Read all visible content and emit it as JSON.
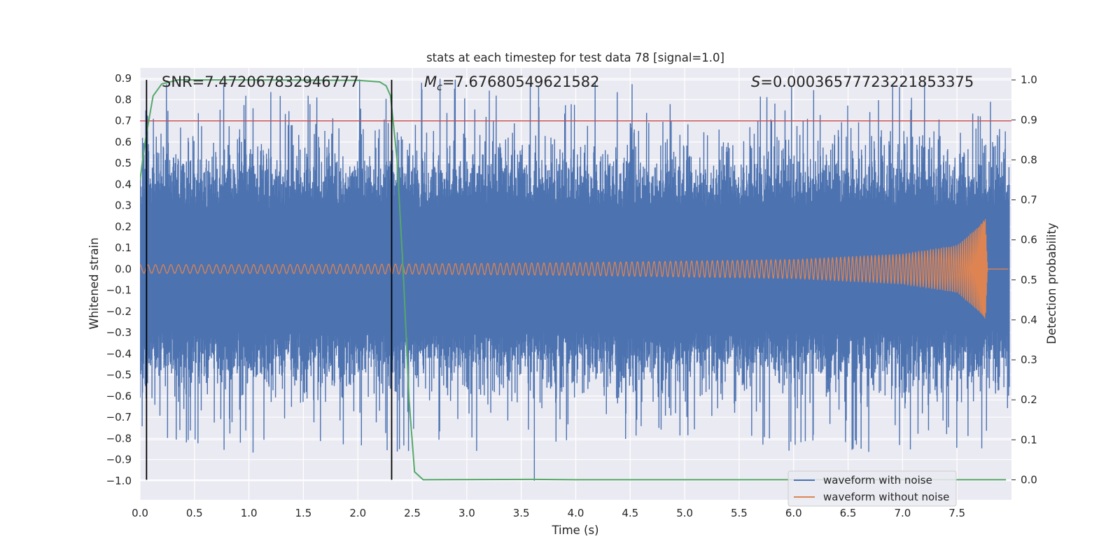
{
  "chart_data": {
    "type": "line",
    "title": "stats at each timestep for test data 78 [signal=1.0]",
    "xlabel": "Time (s)",
    "ylabel_left": "Whitened strain",
    "ylabel_right": "Detection probability",
    "xlim": [
      0.0,
      8.0
    ],
    "ylim_left": [
      -1.09,
      0.95
    ],
    "ylim_right": [
      -0.05,
      1.03
    ],
    "x_ticks": [
      0.0,
      0.5,
      1.0,
      1.5,
      2.0,
      2.5,
      3.0,
      3.5,
      4.0,
      4.5,
      5.0,
      5.5,
      6.0,
      6.5,
      7.0,
      7.5
    ],
    "x_tick_labels": [
      "0.0",
      "0.5",
      "1.0",
      "1.5",
      "2.0",
      "2.5",
      "3.0",
      "3.5",
      "4.0",
      "4.5",
      "5.0",
      "5.5",
      "6.0",
      "6.5",
      "7.0",
      "7.5"
    ],
    "y_ticks_left": [
      0.9,
      0.8,
      0.7,
      0.6,
      0.5,
      0.4,
      0.3,
      0.2,
      0.1,
      0.0,
      -0.1,
      -0.2,
      -0.3,
      -0.4,
      -0.5,
      -0.6,
      -0.7,
      -0.8,
      -0.9,
      -1.0
    ],
    "y_tick_labels_left": [
      "0.9",
      "0.8",
      "0.7",
      "0.6",
      "0.5",
      "0.4",
      "0.3",
      "0.2",
      "0.1",
      "0.0",
      "−0.1",
      "−0.2",
      "−0.3",
      "−0.4",
      "−0.5",
      "−0.6",
      "−0.7",
      "−0.8",
      "−0.9",
      "−1.0"
    ],
    "y_ticks_right": [
      1.0,
      0.9,
      0.8,
      0.7,
      0.6,
      0.5,
      0.4,
      0.3,
      0.2,
      0.1,
      0.0
    ],
    "y_tick_labels_right": [
      "1.0",
      "0.9",
      "0.8",
      "0.7",
      "0.6",
      "0.5",
      "0.4",
      "0.3",
      "0.2",
      "0.1",
      "0.0"
    ],
    "annotations": {
      "snr": "SNR=7.472067832946777",
      "mc_symbol": "M",
      "mc_sub": "c",
      "mc_value": "=7.67680549621582",
      "s_symbol": "S",
      "s_value": "=0.00036577723221853375"
    },
    "threshold": {
      "axis": "left",
      "value": 0.7,
      "color": "#c44e52"
    },
    "vlines": [
      0.06,
      2.31
    ],
    "noise_band": {
      "typical_amplitude": 0.52,
      "max_peak": 0.9,
      "min_trough": -1.0
    },
    "signal_envelope": [
      {
        "t": 0.0,
        "amp": 0.02
      },
      {
        "t": 2.0,
        "amp": 0.022
      },
      {
        "t": 4.0,
        "amp": 0.03
      },
      {
        "t": 6.0,
        "amp": 0.045
      },
      {
        "t": 7.0,
        "amp": 0.07
      },
      {
        "t": 7.5,
        "amp": 0.11
      },
      {
        "t": 7.7,
        "amp": 0.2
      },
      {
        "t": 7.76,
        "amp": 0.24
      },
      {
        "t": 7.78,
        "amp": 0.0
      },
      {
        "t": 8.0,
        "amp": 0.0
      }
    ],
    "detection_probability": [
      {
        "t": 0.0,
        "p": 0.75
      },
      {
        "t": 0.05,
        "p": 0.85
      },
      {
        "t": 0.12,
        "p": 0.96
      },
      {
        "t": 0.2,
        "p": 0.99
      },
      {
        "t": 0.35,
        "p": 1.0
      },
      {
        "t": 1.0,
        "p": 1.0
      },
      {
        "t": 2.0,
        "p": 0.999
      },
      {
        "t": 2.2,
        "p": 0.995
      },
      {
        "t": 2.26,
        "p": 0.985
      },
      {
        "t": 2.3,
        "p": 0.96
      },
      {
        "t": 2.36,
        "p": 0.8
      },
      {
        "t": 2.42,
        "p": 0.5
      },
      {
        "t": 2.47,
        "p": 0.2
      },
      {
        "t": 2.52,
        "p": 0.02
      },
      {
        "t": 2.6,
        "p": 0.0
      },
      {
        "t": 3.6,
        "p": 0.001
      },
      {
        "t": 4.0,
        "p": 0.0
      },
      {
        "t": 7.95,
        "p": 0.0
      }
    ],
    "series": [
      {
        "name": "waveform with noise",
        "color": "#4c72b0"
      },
      {
        "name": "waveform without noise",
        "color": "#dd8452"
      },
      {
        "name": "detection probability",
        "color": "#55a868"
      }
    ],
    "legend": {
      "placement": "lower-right",
      "entries": [
        "waveform with noise",
        "waveform without noise"
      ]
    },
    "grid": true
  }
}
